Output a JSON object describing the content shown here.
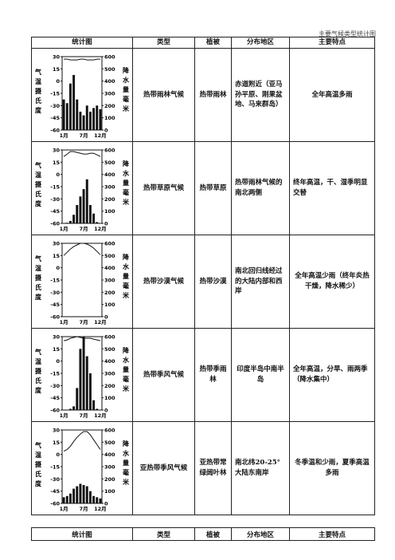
{
  "running_title": "主要气候类型统计图",
  "table": {
    "headers": [
      "统计图",
      "类型",
      "植被",
      "分布地区",
      "主要特点"
    ],
    "rows": [
      {
        "type": "热带雨林气候",
        "vegetation": "热带雨林",
        "distribution": "赤道附近（亚马孙平原、刚果盆地、马来群岛）",
        "features": "全年高温多雨"
      },
      {
        "type": "热带草原气候",
        "vegetation": "热带草原",
        "distribution": "热带雨林气候的南北两侧",
        "features": "终年高温，干、湿季明显交替"
      },
      {
        "type": "热带沙漠气候",
        "vegetation": "热带沙漠",
        "distribution": "南北回归线经过的大陆内部和西岸",
        "features": "全年高温少雨（终年炎热干燥，降水稀少）"
      },
      {
        "type": "热带季风气候",
        "vegetation": "热带季雨林",
        "distribution": "印度半岛中南半岛",
        "features": "全年高温，分旱、雨两季（降水集中）"
      },
      {
        "type": "亚热带季风气候",
        "vegetation": "亚热带常绿阔叶林",
        "distribution": "南北纬20-25°大陆东南岸",
        "features": "冬季温和少雨，夏季高温多雨"
      }
    ]
  },
  "chart_labels": {
    "left_axis_label": "气温摄氏度",
    "right_axis_label": "降水量毫米",
    "temp_ticks": [
      "30",
      "15",
      "0",
      "-15",
      "-30",
      "-45",
      "-60"
    ],
    "precip_ticks": [
      "600",
      "500",
      "400",
      "300",
      "200",
      "100",
      "0"
    ],
    "month_ticks": [
      "1月",
      "7月",
      "12月"
    ]
  },
  "chart_data": [
    {
      "type": "bar+line",
      "name": "热带雨林气候",
      "x": [
        1,
        2,
        3,
        4,
        5,
        6,
        7,
        8,
        9,
        10,
        11,
        12
      ],
      "precip_mm": [
        250,
        220,
        380,
        450,
        250,
        150,
        120,
        200,
        150,
        180,
        200,
        170
      ],
      "temp_c": [
        27,
        27,
        26,
        26,
        26,
        27,
        27,
        26,
        26,
        26,
        27,
        27
      ],
      "temp_range": [
        -60,
        30
      ],
      "precip_range": [
        0,
        600
      ]
    },
    {
      "type": "bar+line",
      "name": "热带草原气候",
      "x": [
        1,
        2,
        3,
        4,
        5,
        6,
        7,
        8,
        9,
        10,
        11,
        12
      ],
      "precip_mm": [
        0,
        5,
        20,
        70,
        150,
        220,
        280,
        360,
        150,
        80,
        10,
        0
      ],
      "temp_c": [
        22,
        25,
        28,
        28,
        27,
        26,
        25,
        25,
        26,
        26,
        24,
        22
      ],
      "temp_range": [
        -60,
        30
      ],
      "precip_range": [
        0,
        600
      ]
    },
    {
      "type": "bar+line",
      "name": "热带沙漠气候",
      "x": [
        1,
        2,
        3,
        4,
        5,
        6,
        7,
        8,
        9,
        10,
        11,
        12
      ],
      "precip_mm": [
        0,
        0,
        0,
        0,
        0,
        0,
        0,
        0,
        0,
        0,
        0,
        0
      ],
      "temp_c": [
        15,
        19,
        23,
        26,
        28,
        30,
        30,
        29,
        27,
        24,
        20,
        16
      ],
      "temp_range": [
        -60,
        30
      ],
      "precip_range": [
        0,
        600
      ]
    },
    {
      "type": "bar+line",
      "name": "热带季风气候",
      "x": [
        1,
        2,
        3,
        4,
        5,
        6,
        7,
        8,
        9,
        10,
        11,
        12
      ],
      "precip_mm": [
        0,
        0,
        10,
        30,
        180,
        500,
        600,
        440,
        300,
        80,
        10,
        0
      ],
      "temp_c": [
        25,
        26,
        28,
        29,
        30,
        29,
        28,
        28,
        28,
        27,
        26,
        25
      ],
      "temp_range": [
        -60,
        30
      ],
      "precip_range": [
        0,
        600
      ]
    },
    {
      "type": "bar+line",
      "name": "亚热带季风气候",
      "x": [
        1,
        2,
        3,
        4,
        5,
        6,
        7,
        8,
        9,
        10,
        11,
        12
      ],
      "precip_mm": [
        50,
        60,
        80,
        120,
        140,
        160,
        150,
        140,
        100,
        60,
        50,
        40
      ],
      "temp_c": [
        4,
        6,
        10,
        16,
        21,
        25,
        28,
        28,
        24,
        18,
        12,
        6
      ],
      "temp_range": [
        -60,
        30
      ],
      "precip_range": [
        0,
        600
      ]
    }
  ]
}
